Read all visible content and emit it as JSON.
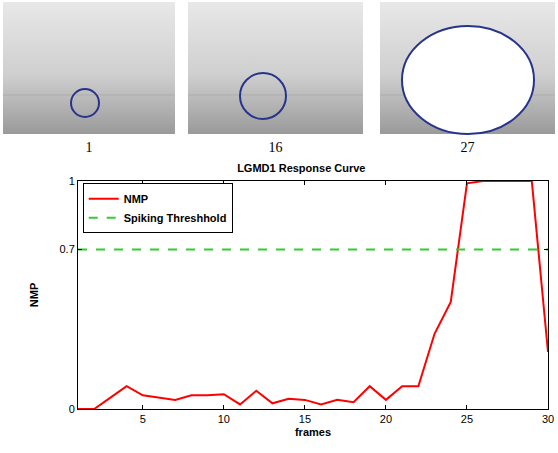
{
  "frame_images": [
    {
      "label": "1"
    },
    {
      "label": "16"
    },
    {
      "label": "27"
    }
  ],
  "chart_data": {
    "type": "line",
    "title": "LGMD1 Response Curve",
    "x_label": "frames",
    "y_label": "NMP",
    "x": [
      1,
      2,
      3,
      4,
      5,
      6,
      7,
      8,
      9,
      10,
      11,
      12,
      13,
      14,
      15,
      16,
      17,
      18,
      19,
      20,
      21,
      22,
      23,
      24,
      25,
      26,
      27,
      28,
      29,
      30
    ],
    "series": [
      {
        "name": "NMP",
        "color": "#ff0000",
        "line_style": "solid",
        "values": [
          0,
          0,
          0.05,
          0.1,
          0.06,
          0.05,
          0.04,
          0.06,
          0.06,
          0.065,
          0.02,
          0.08,
          0.025,
          0.045,
          0.04,
          0.02,
          0.04,
          0.03,
          0.1,
          0.04,
          0.1,
          0.1,
          0.33,
          0.47,
          0.99,
          1,
          1,
          1,
          1,
          0.25
        ]
      },
      {
        "name": "Spiking Threshhold",
        "color": "#33cc33",
        "line_style": "dashed",
        "values": [
          0.7,
          0.7,
          0.7,
          0.7,
          0.7,
          0.7,
          0.7,
          0.7,
          0.7,
          0.7,
          0.7,
          0.7,
          0.7,
          0.7,
          0.7,
          0.7,
          0.7,
          0.7,
          0.7,
          0.7,
          0.7,
          0.7,
          0.7,
          0.7,
          0.7,
          0.7,
          0.7,
          0.7,
          0.7,
          0.7
        ]
      }
    ],
    "xlim": [
      1,
      30
    ],
    "ylim": [
      0,
      1
    ],
    "xticks": [
      5,
      10,
      15,
      20,
      25,
      30
    ],
    "yticks": [
      0,
      0.7,
      1
    ],
    "grid": false,
    "legend": "top left"
  }
}
